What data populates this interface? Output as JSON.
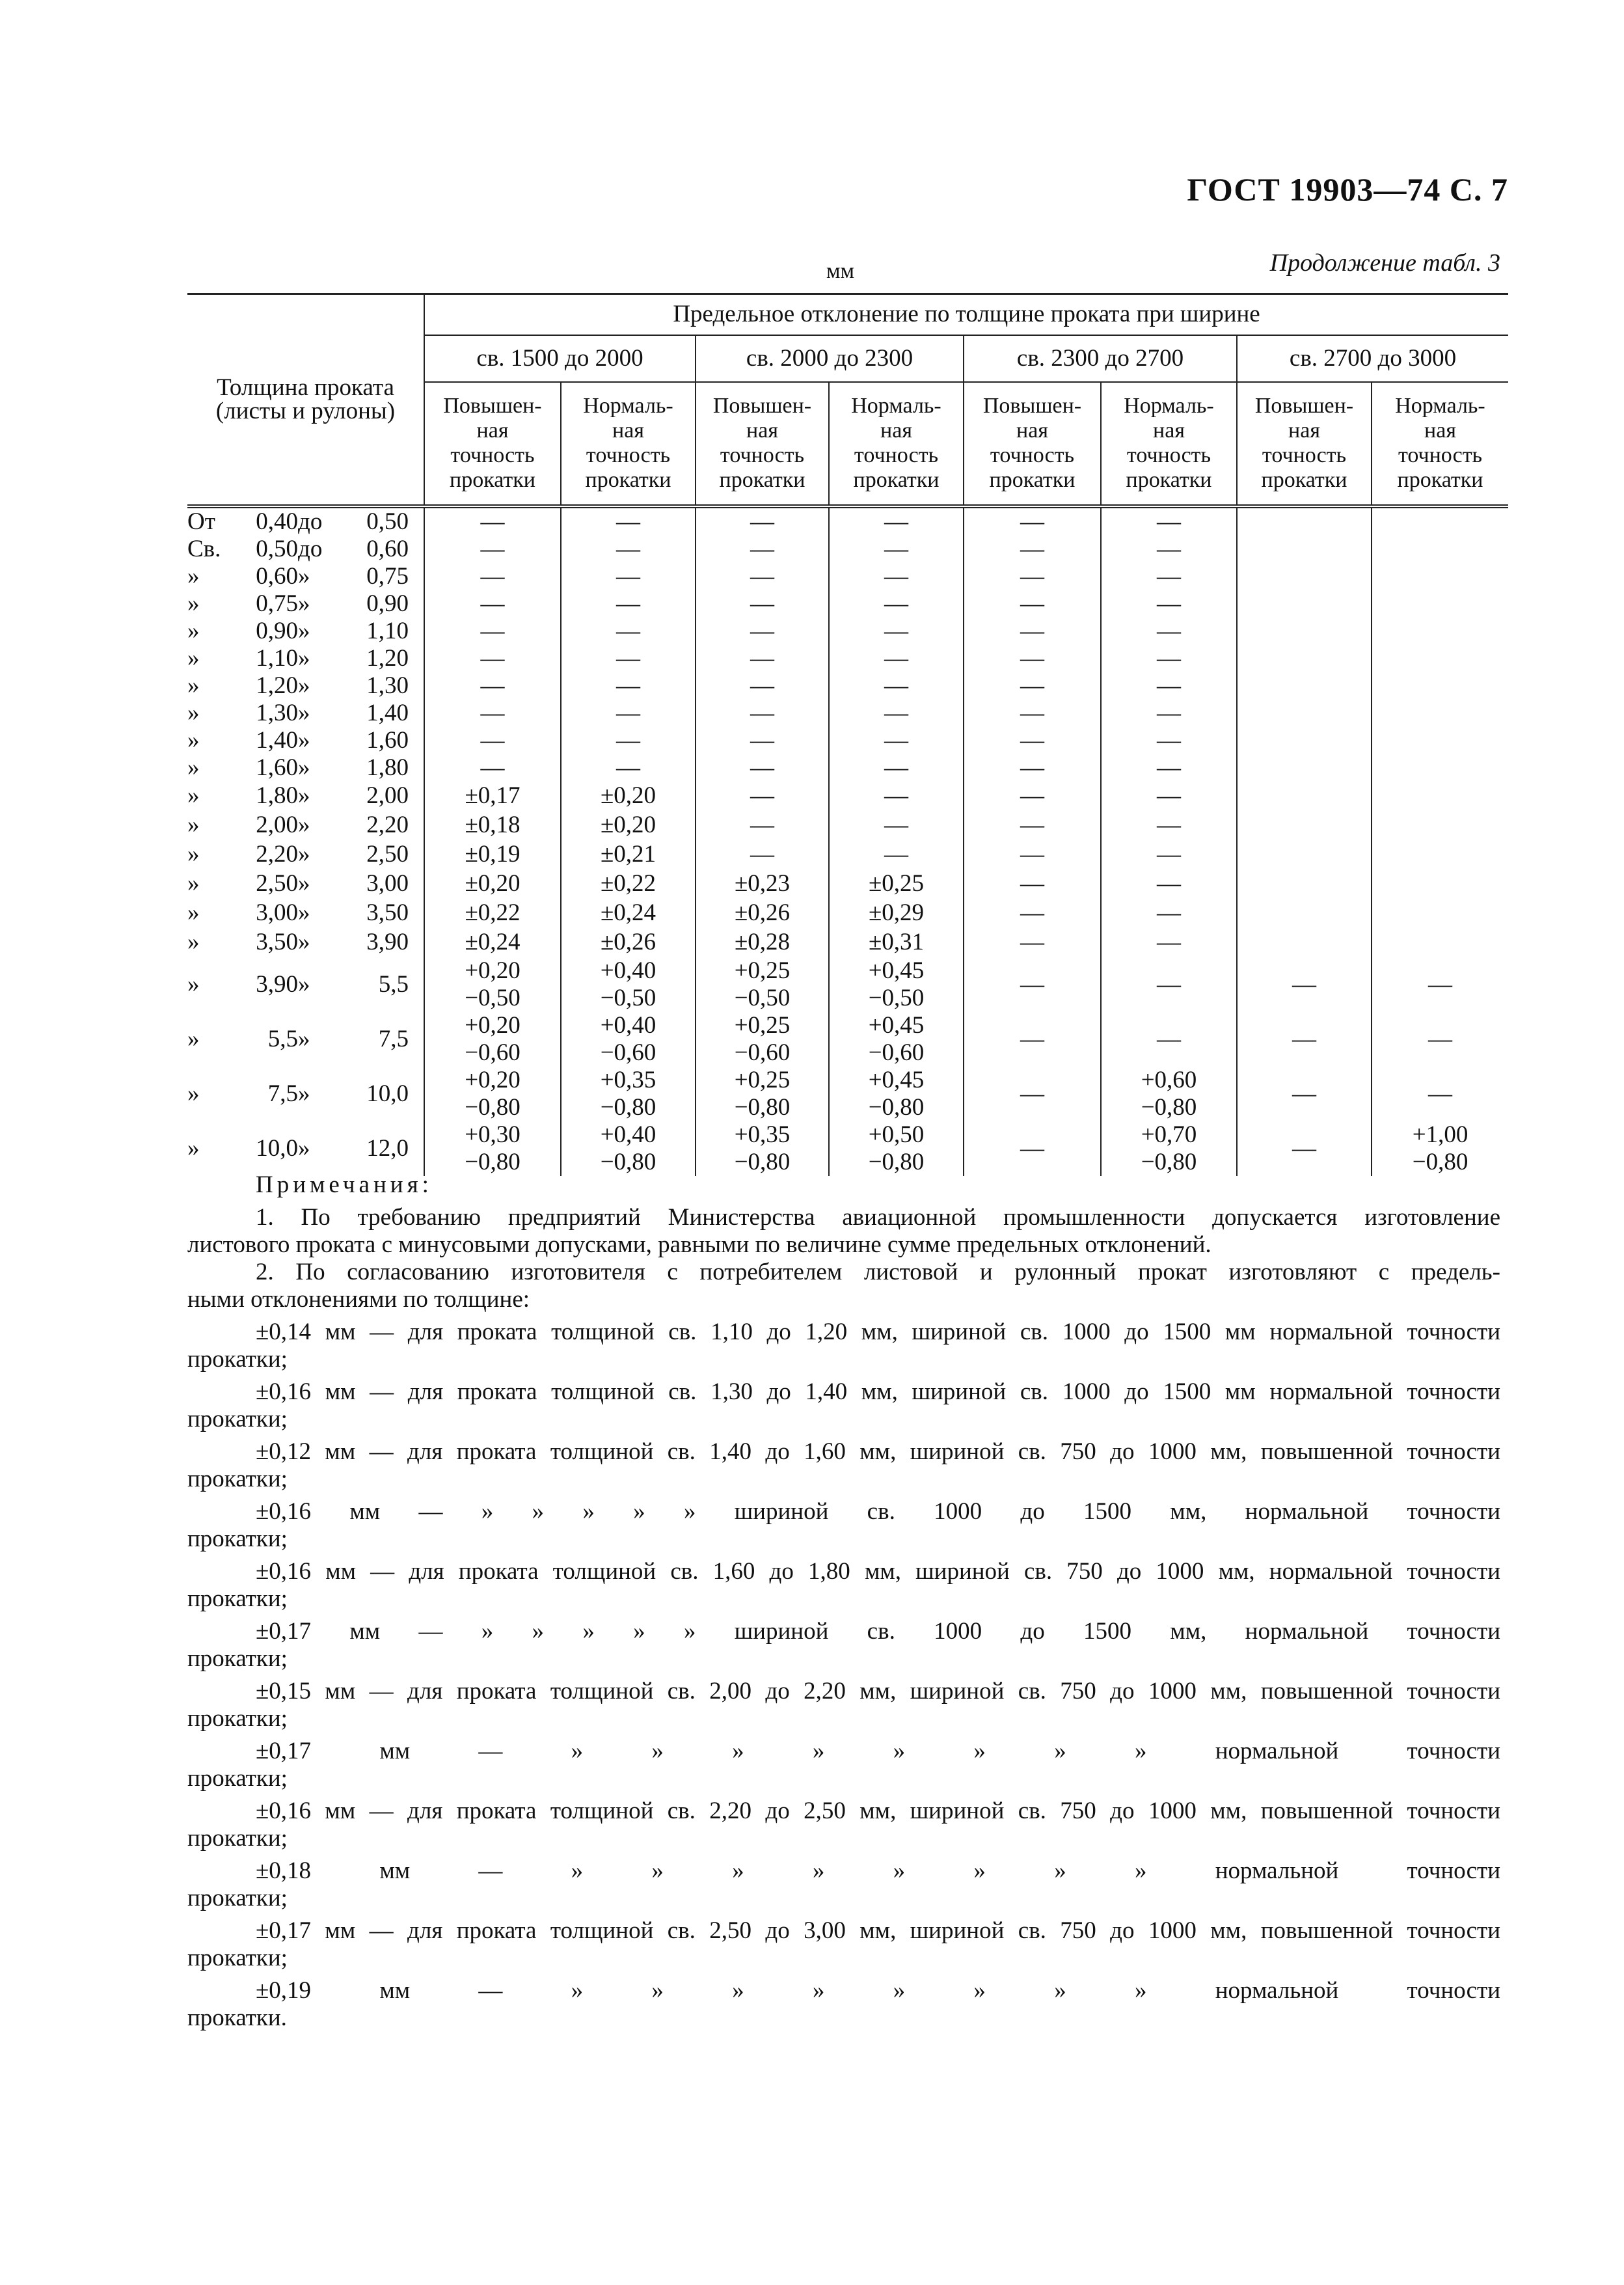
{
  "header": {
    "gost": "ГОСТ 19903—74 С. 7",
    "unit": "мм",
    "continuation": "Продолжение табл. 3"
  },
  "table": {
    "thickness_header": "Толщина проката\n(листы и рулоны)",
    "main_header": "Предельное отклонение по толщине проката при ширине",
    "width_groups": [
      "св. 1500 до 2000",
      "св. 2000 до 2300",
      "св. 2300 до 2700",
      "св. 2700 до 3000"
    ],
    "accuracy_headers": [
      "Повышен-\nная\nточность\nпрокатки",
      "Нормаль-\nная\nточность\nпрокатки"
    ],
    "rows": [
      {
        "p": "От",
        "from": "0,40",
        "s": "до",
        "to": "0,50",
        "v": [
          "—",
          "—",
          "—",
          "—",
          "—",
          "—",
          "",
          ""
        ]
      },
      {
        "p": "Св.",
        "from": "0,50",
        "s": "до",
        "to": "0,60",
        "v": [
          "—",
          "—",
          "—",
          "—",
          "—",
          "—",
          "",
          ""
        ]
      },
      {
        "p": "»",
        "from": "0,60",
        "s": "»",
        "to": "0,75",
        "v": [
          "—",
          "—",
          "—",
          "—",
          "—",
          "—",
          "",
          ""
        ]
      },
      {
        "p": "»",
        "from": "0,75",
        "s": "»",
        "to": "0,90",
        "v": [
          "—",
          "—",
          "—",
          "—",
          "—",
          "—",
          "",
          ""
        ]
      },
      {
        "p": "»",
        "from": "0,90",
        "s": "»",
        "to": "1,10",
        "v": [
          "—",
          "—",
          "—",
          "—",
          "—",
          "—",
          "",
          ""
        ]
      },
      {
        "p": "»",
        "from": "1,10",
        "s": "»",
        "to": "1,20",
        "v": [
          "—",
          "—",
          "—",
          "—",
          "—",
          "—",
          "",
          ""
        ]
      },
      {
        "p": "»",
        "from": "1,20",
        "s": "»",
        "to": "1,30",
        "v": [
          "—",
          "—",
          "—",
          "—",
          "—",
          "—",
          "",
          ""
        ]
      },
      {
        "p": "»",
        "from": "1,30",
        "s": "»",
        "to": "1,40",
        "v": [
          "—",
          "—",
          "—",
          "—",
          "—",
          "—",
          "",
          ""
        ]
      },
      {
        "p": "»",
        "from": "1,40",
        "s": "»",
        "to": "1,60",
        "v": [
          "—",
          "—",
          "—",
          "—",
          "—",
          "—",
          "",
          ""
        ]
      },
      {
        "p": "»",
        "from": "1,60",
        "s": "»",
        "to": "1,80",
        "v": [
          "—",
          "—",
          "—",
          "—",
          "—",
          "—",
          "",
          ""
        ]
      },
      {
        "p": "»",
        "from": "1,80",
        "s": "»",
        "to": "2,00",
        "v": [
          "±0,17",
          "±0,20",
          "—",
          "—",
          "—",
          "—",
          "",
          ""
        ]
      },
      {
        "p": "»",
        "from": "2,00",
        "s": "»",
        "to": "2,20",
        "v": [
          "±0,18",
          "±0,20",
          "—",
          "—",
          "—",
          "—",
          "",
          ""
        ]
      },
      {
        "p": "»",
        "from": "2,20",
        "s": "»",
        "to": "2,50",
        "v": [
          "±0,19",
          "±0,21",
          "—",
          "—",
          "—",
          "—",
          "",
          ""
        ]
      },
      {
        "p": "»",
        "from": "2,50",
        "s": "»",
        "to": "3,00",
        "v": [
          "±0,20",
          "±0,22",
          "±0,23",
          "±0,25",
          "—",
          "—",
          "",
          ""
        ]
      },
      {
        "p": "»",
        "from": "3,00",
        "s": "»",
        "to": "3,50",
        "v": [
          "±0,22",
          "±0,24",
          "±0,26",
          "±0,29",
          "—",
          "—",
          "",
          ""
        ]
      },
      {
        "p": "»",
        "from": "3,50",
        "s": "»",
        "to": "3,90",
        "v": [
          "±0,24",
          "±0,26",
          "±0,28",
          "±0,31",
          "—",
          "—",
          "",
          ""
        ]
      },
      {
        "p": "»",
        "from": "3,90",
        "s": "»",
        "to": "5,5",
        "v": [
          "+0,20\n−0,50",
          "+0,40\n−0,50",
          "+0,25\n−0,50",
          "+0,45\n−0,50",
          "—",
          "—",
          "—",
          "—"
        ]
      },
      {
        "p": "»",
        "from": "5,5",
        "s": "»",
        "to": "7,5",
        "v": [
          "+0,20\n−0,60",
          "+0,40\n−0,60",
          "+0,25\n−0,60",
          "+0,45\n−0,60",
          "—",
          "—",
          "—",
          "—"
        ]
      },
      {
        "p": "»",
        "from": "7,5",
        "s": "»",
        "to": "10,0",
        "v": [
          "+0,20\n−0,80",
          "+0,35\n−0,80",
          "+0,25\n−0,80",
          "+0,45\n−0,80",
          "—",
          "+0,60\n−0,80",
          "—",
          "—"
        ]
      },
      {
        "p": "»",
        "from": "10,0",
        "s": "»",
        "to": "12,0",
        "v": [
          "+0,30\n−0,80",
          "+0,40\n−0,80",
          "+0,35\n−0,80",
          "+0,50\n−0,80",
          "—",
          "+0,70\n−0,80",
          "—",
          "+1,00\n−0,80"
        ]
      }
    ]
  },
  "notes": {
    "title": "Примечания:",
    "paragraphs": [
      [
        "1. По требованию предприятий Министерства авиационной промышленности допускается изготовление",
        "листового проката с минусовыми допусками, равными по величине сумме предельных отклонений."
      ],
      [
        "2. По согласованию изготовителя с потребителем листовой и рулонный прокат изготовляют с предель-",
        "ными отклонениями по толщине:"
      ]
    ],
    "entries": [
      [
        "±0,14 мм — для проката толщиной св. 1,10 до 1,20 мм, шириной св. 1000 до 1500 мм нормальной точности",
        "прокатки;"
      ],
      [
        "±0,16 мм — для проката толщиной св. 1,30 до 1,40 мм, шириной св. 1000 до 1500 мм нормальной точности",
        "прокатки;"
      ],
      [
        "±0,12 мм — для проката толщиной св. 1,40 до 1,60 мм, шириной св. 750 до 1000 мм, повышенной точности",
        "прокатки;"
      ],
      [
        "±0,16 мм — » » » » » шириной св. 1000 до 1500 мм, нормальной точности",
        "прокатки;"
      ],
      [
        "±0,16 мм — для проката толщиной св. 1,60 до 1,80 мм, шириной св. 750 до 1000 мм, нормальной точности",
        "прокатки;"
      ],
      [
        "±0,17 мм — » » » » » шириной св. 1000 до 1500 мм, нормальной точности",
        "прокатки;"
      ],
      [
        "±0,15 мм — для проката толщиной св. 2,00 до 2,20 мм, шириной св. 750 до 1000 мм, повышенной точности",
        "прокатки;"
      ],
      [
        "±0,17 мм — » » » » » » » » нормальной точности",
        "прокатки;"
      ],
      [
        "±0,16 мм — для проката толщиной св. 2,20 до 2,50 мм, шириной св. 750 до 1000 мм, повышенной точности",
        "прокатки;"
      ],
      [
        "±0,18 мм — » » » » » » » » нормальной точности",
        "прокатки;"
      ],
      [
        "±0,17 мм — для проката толщиной св. 2,50 до 3,00 мм, шириной св. 750 до 1000 мм, повышенной точности",
        "прокатки;"
      ],
      [
        "±0,19 мм — » » » » » » » » нормальной точности",
        "прокатки."
      ]
    ]
  }
}
